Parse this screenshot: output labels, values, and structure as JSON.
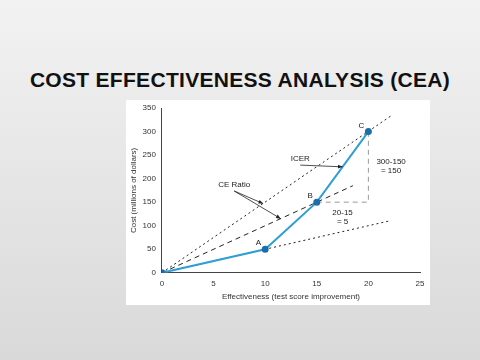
{
  "chart_data": {
    "type": "line",
    "title": "COST EFFECTIVENESS ANALYSIS (CEA)",
    "x_label": "Effectiveness (test score improvement)",
    "y_label": "Cost (millions of dollars)",
    "xlim": [
      0,
      25
    ],
    "xticks": [
      0,
      5,
      10,
      15,
      20,
      25
    ],
    "ylim": [
      0,
      350
    ],
    "yticks": [
      0,
      50,
      100,
      150,
      200,
      250,
      300,
      350
    ],
    "grid": false,
    "series": [
      {
        "x": [
          0,
          10,
          15,
          20
        ],
        "values": [
          0,
          50,
          150,
          300
        ],
        "color": "#2e9fd6",
        "marker": "circle",
        "line_style": "solid",
        "point_labels": [
          null,
          "A",
          "B",
          "C"
        ]
      },
      {
        "x": [
          0,
          22.3
        ],
        "values": [
          0,
          335
        ],
        "color": "#222222",
        "marker": "none",
        "line_style": "dotted"
      },
      {
        "x": [
          0,
          18.5
        ],
        "values": [
          0,
          185
        ],
        "color": "#222222",
        "marker": "none",
        "line_style": "dashed"
      },
      {
        "x": [
          0,
          22
        ],
        "values": [
          0,
          110
        ],
        "color": "#222222",
        "marker": "none",
        "line_style": "dotted"
      },
      {
        "x": [
          15,
          20,
          20
        ],
        "values": [
          150,
          150,
          300
        ],
        "color": "#999999",
        "marker": "none",
        "line_style": "dashed"
      }
    ],
    "annotations": [
      {
        "text": "ICER",
        "x": 13.4,
        "y": 250,
        "arrow_to": [
          [
            17.5,
            225
          ]
        ]
      },
      {
        "text": "CE Ratio",
        "x": 7,
        "y": 195,
        "arrow_to": [
          [
            9.8,
            147
          ],
          [
            11.5,
            115
          ]
        ]
      },
      {
        "text": "300-150\n= 150",
        "x": 22.2,
        "y": 245,
        "arrow_to": []
      },
      {
        "text": "20-15\n= 5",
        "x": 17.5,
        "y": 135,
        "arrow_to": []
      }
    ]
  }
}
